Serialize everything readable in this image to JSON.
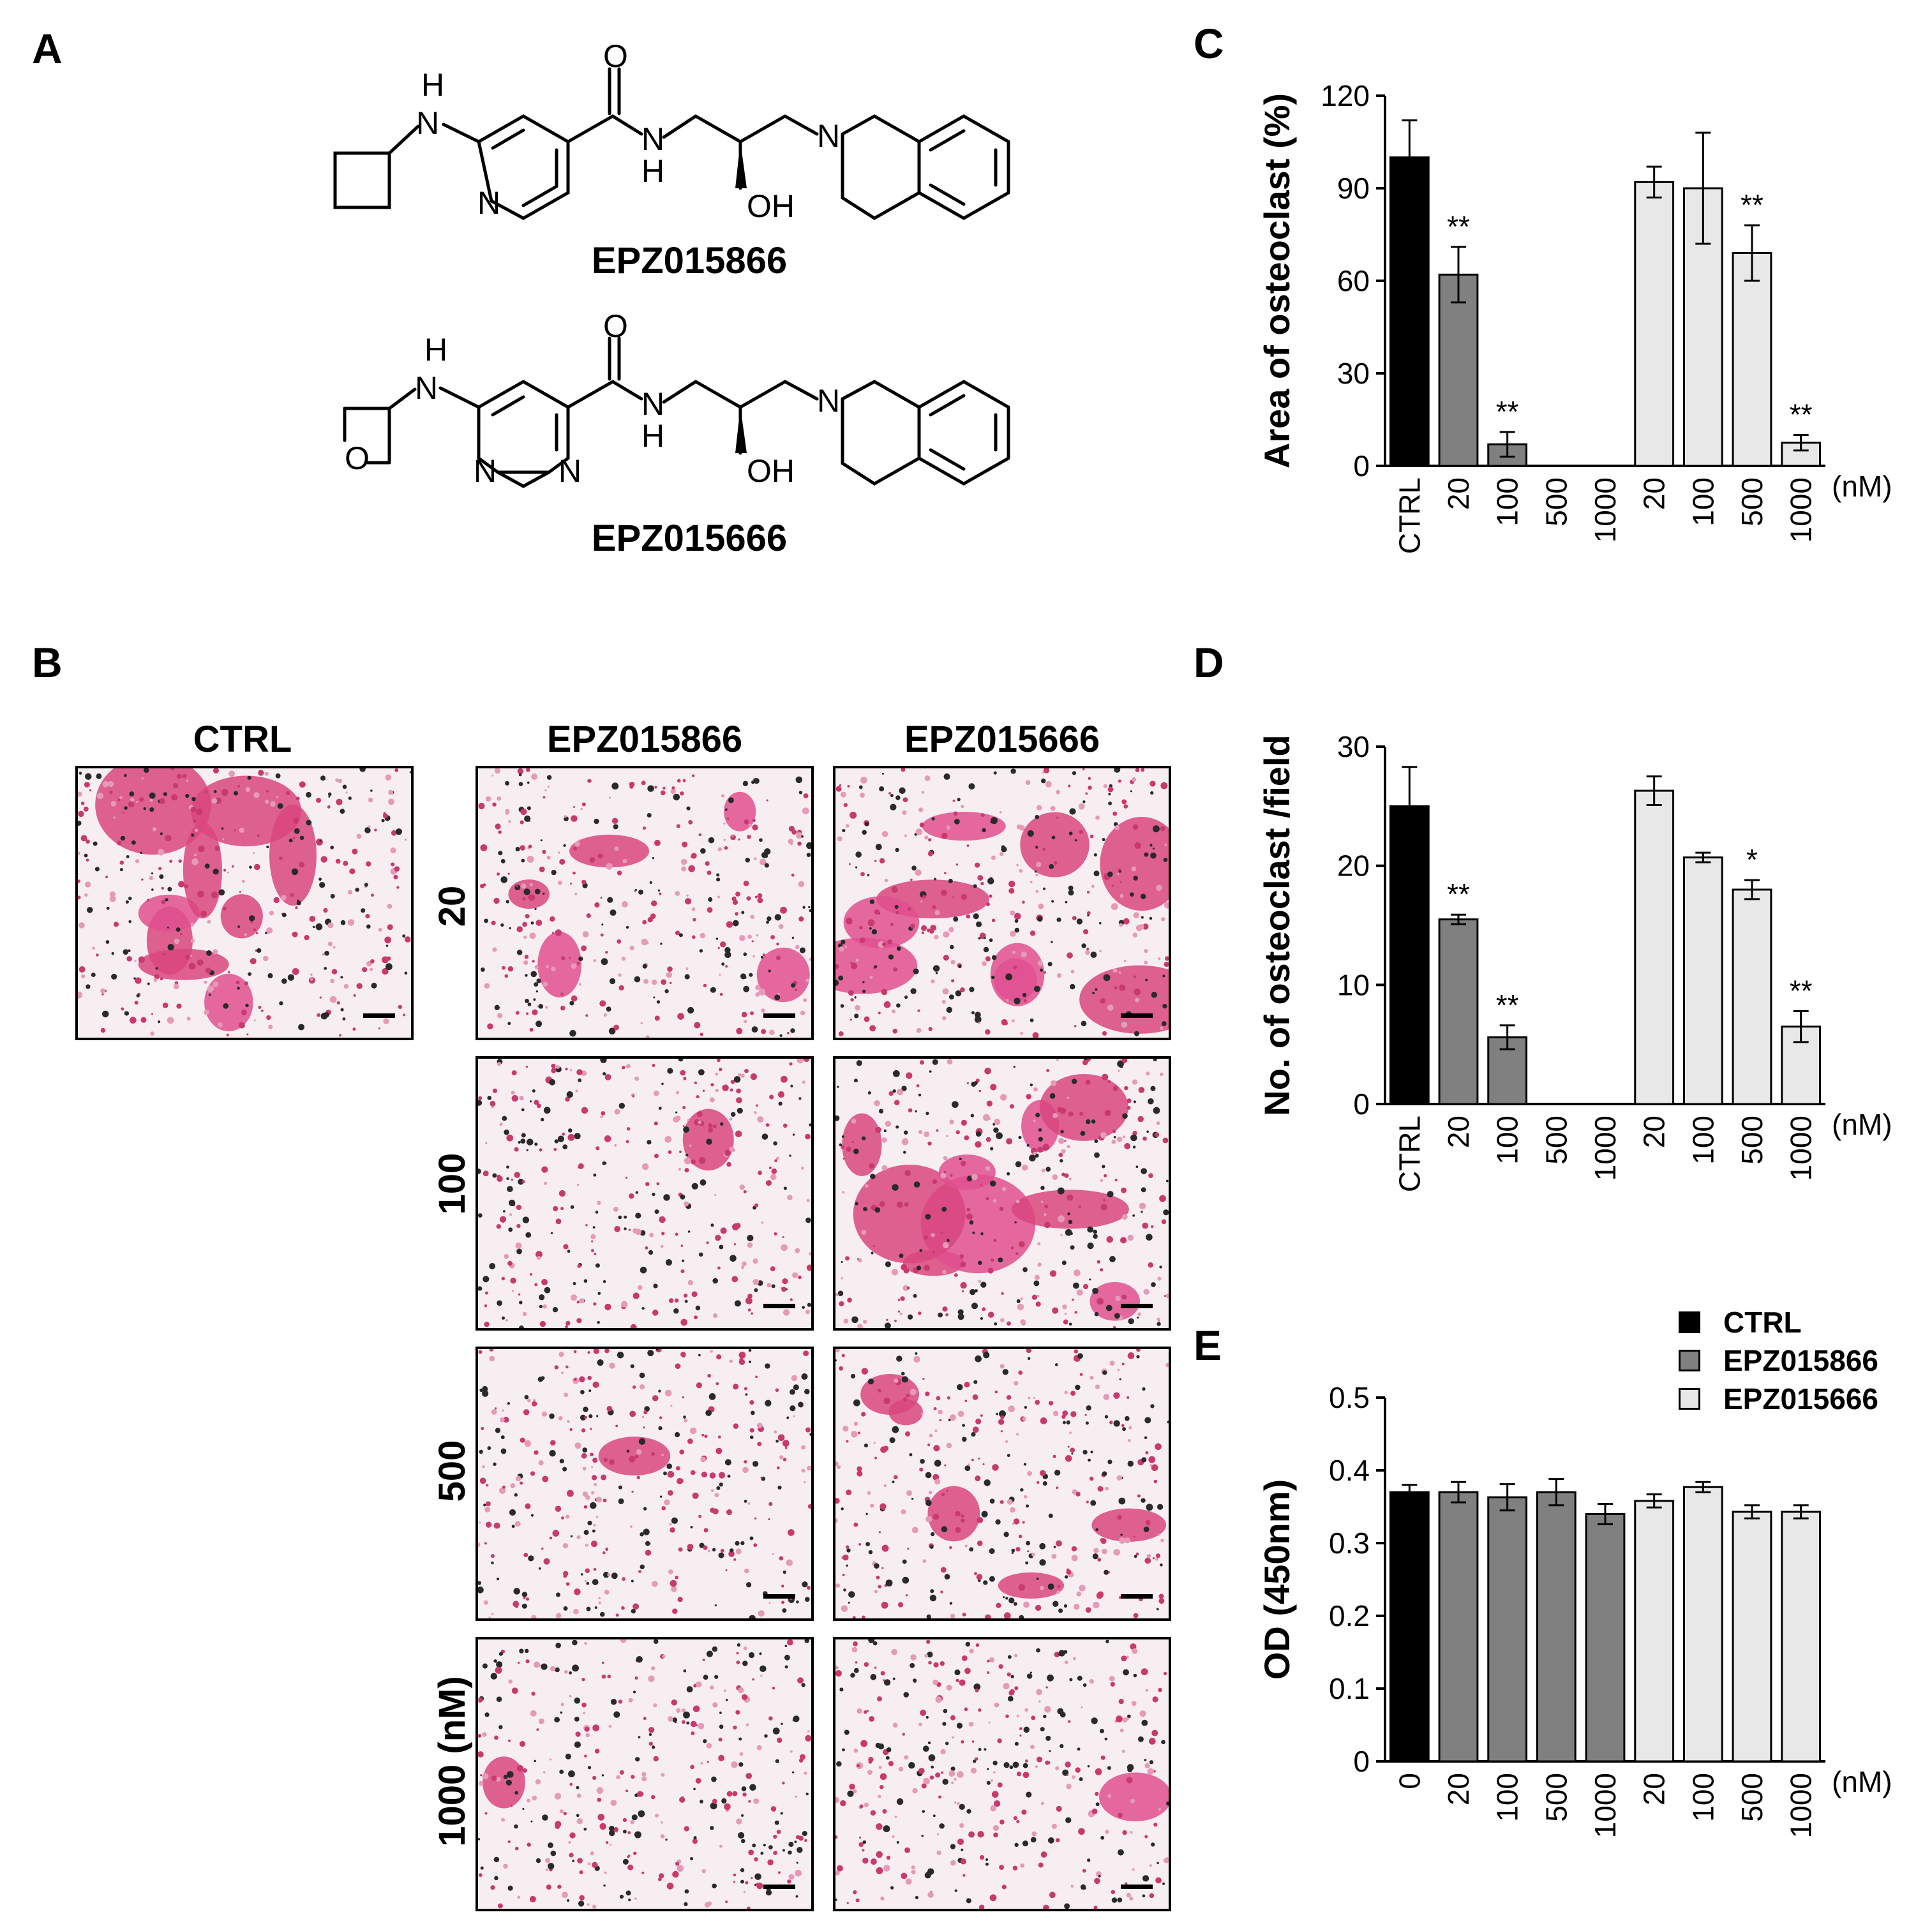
{
  "panels": {
    "A": {
      "letter": "A",
      "compounds": [
        {
          "name": "EPZ015866",
          "atoms": {
            "h_top": "H",
            "n_amine": "N",
            "n_ring": "N",
            "o_carbonyl": "O",
            "n_amide": "N",
            "h_amide": "H",
            "oh": "OH",
            "n_tiq": "N"
          }
        },
        {
          "name": "EPZ015666",
          "atoms": {
            "h_top": "H",
            "n_amine": "N",
            "o_oxetane": "O",
            "n_ring1": "N",
            "n_ring2": "N",
            "o_carbonyl": "O",
            "n_amide": "N",
            "h_amide": "H",
            "oh": "OH",
            "n_tiq": "N"
          }
        }
      ]
    },
    "B": {
      "letter": "B",
      "col_headers": [
        "CTRL",
        "EPZ015866",
        "EPZ015666"
      ],
      "row_headers": [
        "20",
        "100",
        "500",
        "1000 (nM)"
      ]
    },
    "C": {
      "letter": "C"
    },
    "D": {
      "letter": "D"
    },
    "E": {
      "letter": "E"
    }
  },
  "legend": {
    "items": [
      {
        "label": "CTRL",
        "color": "#000000"
      },
      {
        "label": "EPZ015866",
        "color": "#808080"
      },
      {
        "label": "EPZ015666",
        "color": "#e8e8e8"
      }
    ]
  },
  "chart_data": [
    {
      "id": "C",
      "type": "bar",
      "ylabel": "Area of osteoclast (%)",
      "unit_label": "(nM)",
      "ylim": [
        0,
        120
      ],
      "yticks": [
        0,
        30,
        60,
        90,
        120
      ],
      "categories": [
        "CTRL",
        "20",
        "100",
        "500",
        "1000",
        "20",
        "100",
        "500",
        "1000"
      ],
      "groups": [
        "CTRL",
        "EPZ015866",
        "EPZ015866",
        "EPZ015866",
        "EPZ015866",
        "EPZ015666",
        "EPZ015666",
        "EPZ015666",
        "EPZ015666"
      ],
      "values": [
        100,
        62,
        7,
        0,
        0,
        92,
        90,
        69,
        7.5
      ],
      "errors": [
        12,
        9,
        4,
        0,
        0,
        5,
        18,
        9,
        2.5
      ],
      "annotations": [
        "",
        "**",
        "**",
        "",
        "",
        "",
        "",
        "**",
        "**"
      ]
    },
    {
      "id": "D",
      "type": "bar",
      "ylabel": "No. of osteoclast /field",
      "unit_label": "(nM)",
      "ylim": [
        0,
        30
      ],
      "yticks": [
        0,
        10,
        20,
        30
      ],
      "categories": [
        "CTRL",
        "20",
        "100",
        "500",
        "1000",
        "20",
        "100",
        "500",
        "1000"
      ],
      "groups": [
        "CTRL",
        "EPZ015866",
        "EPZ015866",
        "EPZ015866",
        "EPZ015866",
        "EPZ015666",
        "EPZ015666",
        "EPZ015666",
        "EPZ015666"
      ],
      "values": [
        25,
        15.5,
        5.6,
        0,
        0,
        26.3,
        20.7,
        18,
        6.5
      ],
      "errors": [
        3.3,
        0.4,
        1.0,
        0,
        0,
        1.2,
        0.4,
        0.8,
        1.3
      ],
      "annotations": [
        "",
        "**",
        "**",
        "",
        "",
        "",
        "",
        "*",
        "**"
      ]
    },
    {
      "id": "E",
      "type": "bar",
      "ylabel": "OD (450nm)",
      "unit_label": "(nM)",
      "ylim": [
        0,
        0.5
      ],
      "yticks": [
        "0",
        "0.1",
        "0.2",
        "0.3",
        "0.4",
        "0.5"
      ],
      "categories": [
        "0",
        "20",
        "100",
        "500",
        "1000",
        "20",
        "100",
        "500",
        "1000"
      ],
      "groups": [
        "CTRL",
        "EPZ015866",
        "EPZ015866",
        "EPZ015866",
        "EPZ015866",
        "EPZ015666",
        "EPZ015666",
        "EPZ015666",
        "EPZ015666"
      ],
      "values": [
        0.37,
        0.37,
        0.363,
        0.37,
        0.34,
        0.358,
        0.377,
        0.343,
        0.343
      ],
      "errors": [
        0.01,
        0.014,
        0.018,
        0.018,
        0.014,
        0.009,
        0.007,
        0.009,
        0.009
      ],
      "annotations": [
        "",
        "",
        "",
        "",
        "",
        "",
        "",
        "",
        ""
      ]
    }
  ]
}
